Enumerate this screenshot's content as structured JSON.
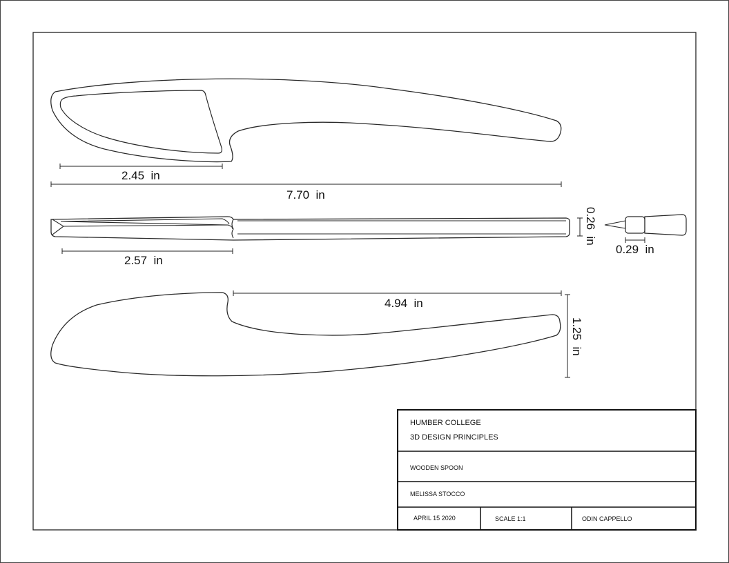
{
  "dimensions": {
    "side_blade_length": "2.45  in",
    "side_total_length": "7.70  in",
    "top_blade_length": "2.57  in",
    "top_thickness": "0.26  in",
    "end_width": "0.29  in",
    "bottom_handle_length": "4.94  in",
    "bottom_height": "1.25  in"
  },
  "title_block": {
    "institution": "HUMBER COLLEGE",
    "course": "3D DESIGN PRINCIPLES",
    "part_name": "WOODEN SPOON",
    "designer": "MELISSA STOCCO",
    "date": "APRIL 15 2020",
    "scale": "SCALE 1:1",
    "checker": "ODIN CAPPELLO"
  }
}
